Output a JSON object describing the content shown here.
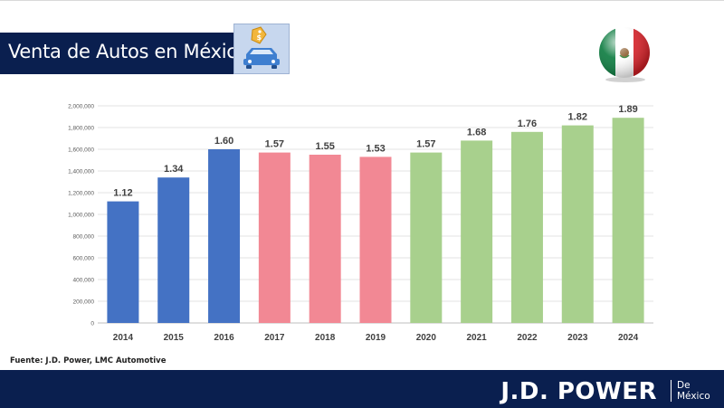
{
  "header": {
    "title": "Venta de Autos en México"
  },
  "source": "Fuente: J.D. Power, LMC Automotive",
  "footer": {
    "brand": "J.D. POWER",
    "sub_line1": "De",
    "sub_line2": "México"
  },
  "colors": {
    "navy": "#0a1f4f",
    "blue": "#4472c4",
    "pink": "#f28894",
    "green": "#a8d08d",
    "tile": "#c7d7ee"
  },
  "icons": [
    "car-price-tag-icon",
    "mexico-flag-ball-icon"
  ],
  "chart_data": {
    "type": "bar",
    "categories": [
      "2014",
      "2015",
      "2016",
      "2017",
      "2018",
      "2019",
      "2020",
      "2021",
      "2022",
      "2023",
      "2024"
    ],
    "values": [
      1120000,
      1340000,
      1600000,
      1570000,
      1550000,
      1530000,
      1570000,
      1680000,
      1760000,
      1820000,
      1890000
    ],
    "data_labels": [
      "1.12",
      "1.34",
      "1.60",
      "1.57",
      "1.55",
      "1.53",
      "1.57",
      "1.68",
      "1.76",
      "1.82",
      "1.89"
    ],
    "bar_colors": [
      "#4472c4",
      "#4472c4",
      "#4472c4",
      "#f28894",
      "#f28894",
      "#f28894",
      "#a8d08d",
      "#a8d08d",
      "#a8d08d",
      "#a8d08d",
      "#a8d08d"
    ],
    "y_ticks": [
      0,
      200000,
      400000,
      600000,
      800000,
      1000000,
      1200000,
      1400000,
      1600000,
      1800000,
      2000000
    ],
    "y_tick_labels": [
      "0",
      "200,000",
      "400,000",
      "600,000",
      "800,000",
      "1,000,000",
      "1,200,000",
      "1,400,000",
      "1,600,000",
      "1,800,000",
      "2,000,000"
    ],
    "ylim": [
      0,
      2000000
    ],
    "grid": true,
    "legend": "none"
  }
}
